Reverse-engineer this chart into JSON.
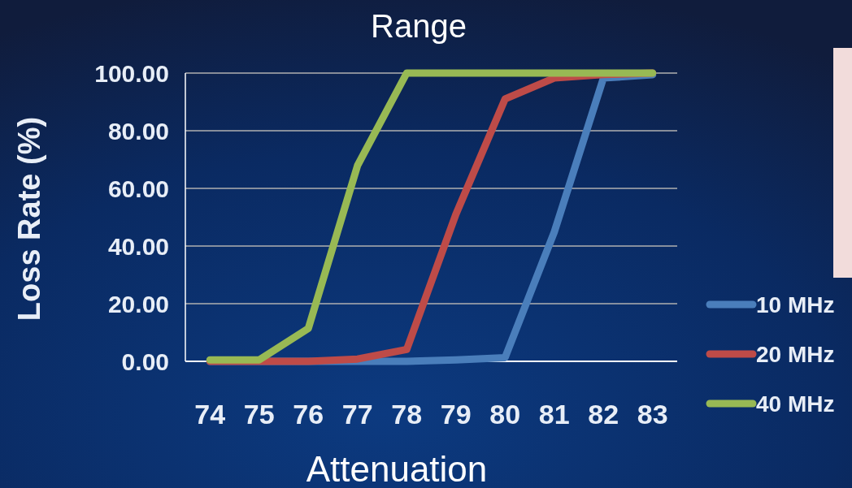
{
  "chart_data": {
    "type": "line",
    "title": "Range",
    "xlabel": "Attenuation",
    "ylabel": "Loss Rate (%)",
    "categories": [
      "74",
      "75",
      "76",
      "77",
      "78",
      "79",
      "80",
      "81",
      "82",
      "83"
    ],
    "series": [
      {
        "name": "10 MHz",
        "color": "#4a7ebb",
        "values": [
          0,
          0,
          0,
          0,
          0,
          0.5,
          1.3,
          44.8,
          98.3,
          99.4
        ]
      },
      {
        "name": "20 MHz",
        "color": "#be4b48",
        "values": [
          0,
          0,
          0,
          0.8,
          4.1,
          51,
          91,
          98.3,
          99.5,
          100
        ]
      },
      {
        "name": "40 MHz",
        "color": "#98b954",
        "values": [
          0.5,
          0.5,
          11.4,
          67.9,
          100,
          100,
          100,
          100,
          100,
          100
        ]
      }
    ],
    "ylim": [
      0,
      100
    ],
    "yticks": [
      {
        "value": 0,
        "label": "0.00"
      },
      {
        "value": 20,
        "label": "20.00"
      },
      {
        "value": 40,
        "label": "40.00"
      },
      {
        "value": 60,
        "label": "60.00"
      },
      {
        "value": 80,
        "label": "80.00"
      },
      {
        "value": 100,
        "label": "100.00"
      }
    ],
    "grid": "y",
    "legend": "bottom right",
    "marker": "none",
    "line_style": "solid"
  }
}
